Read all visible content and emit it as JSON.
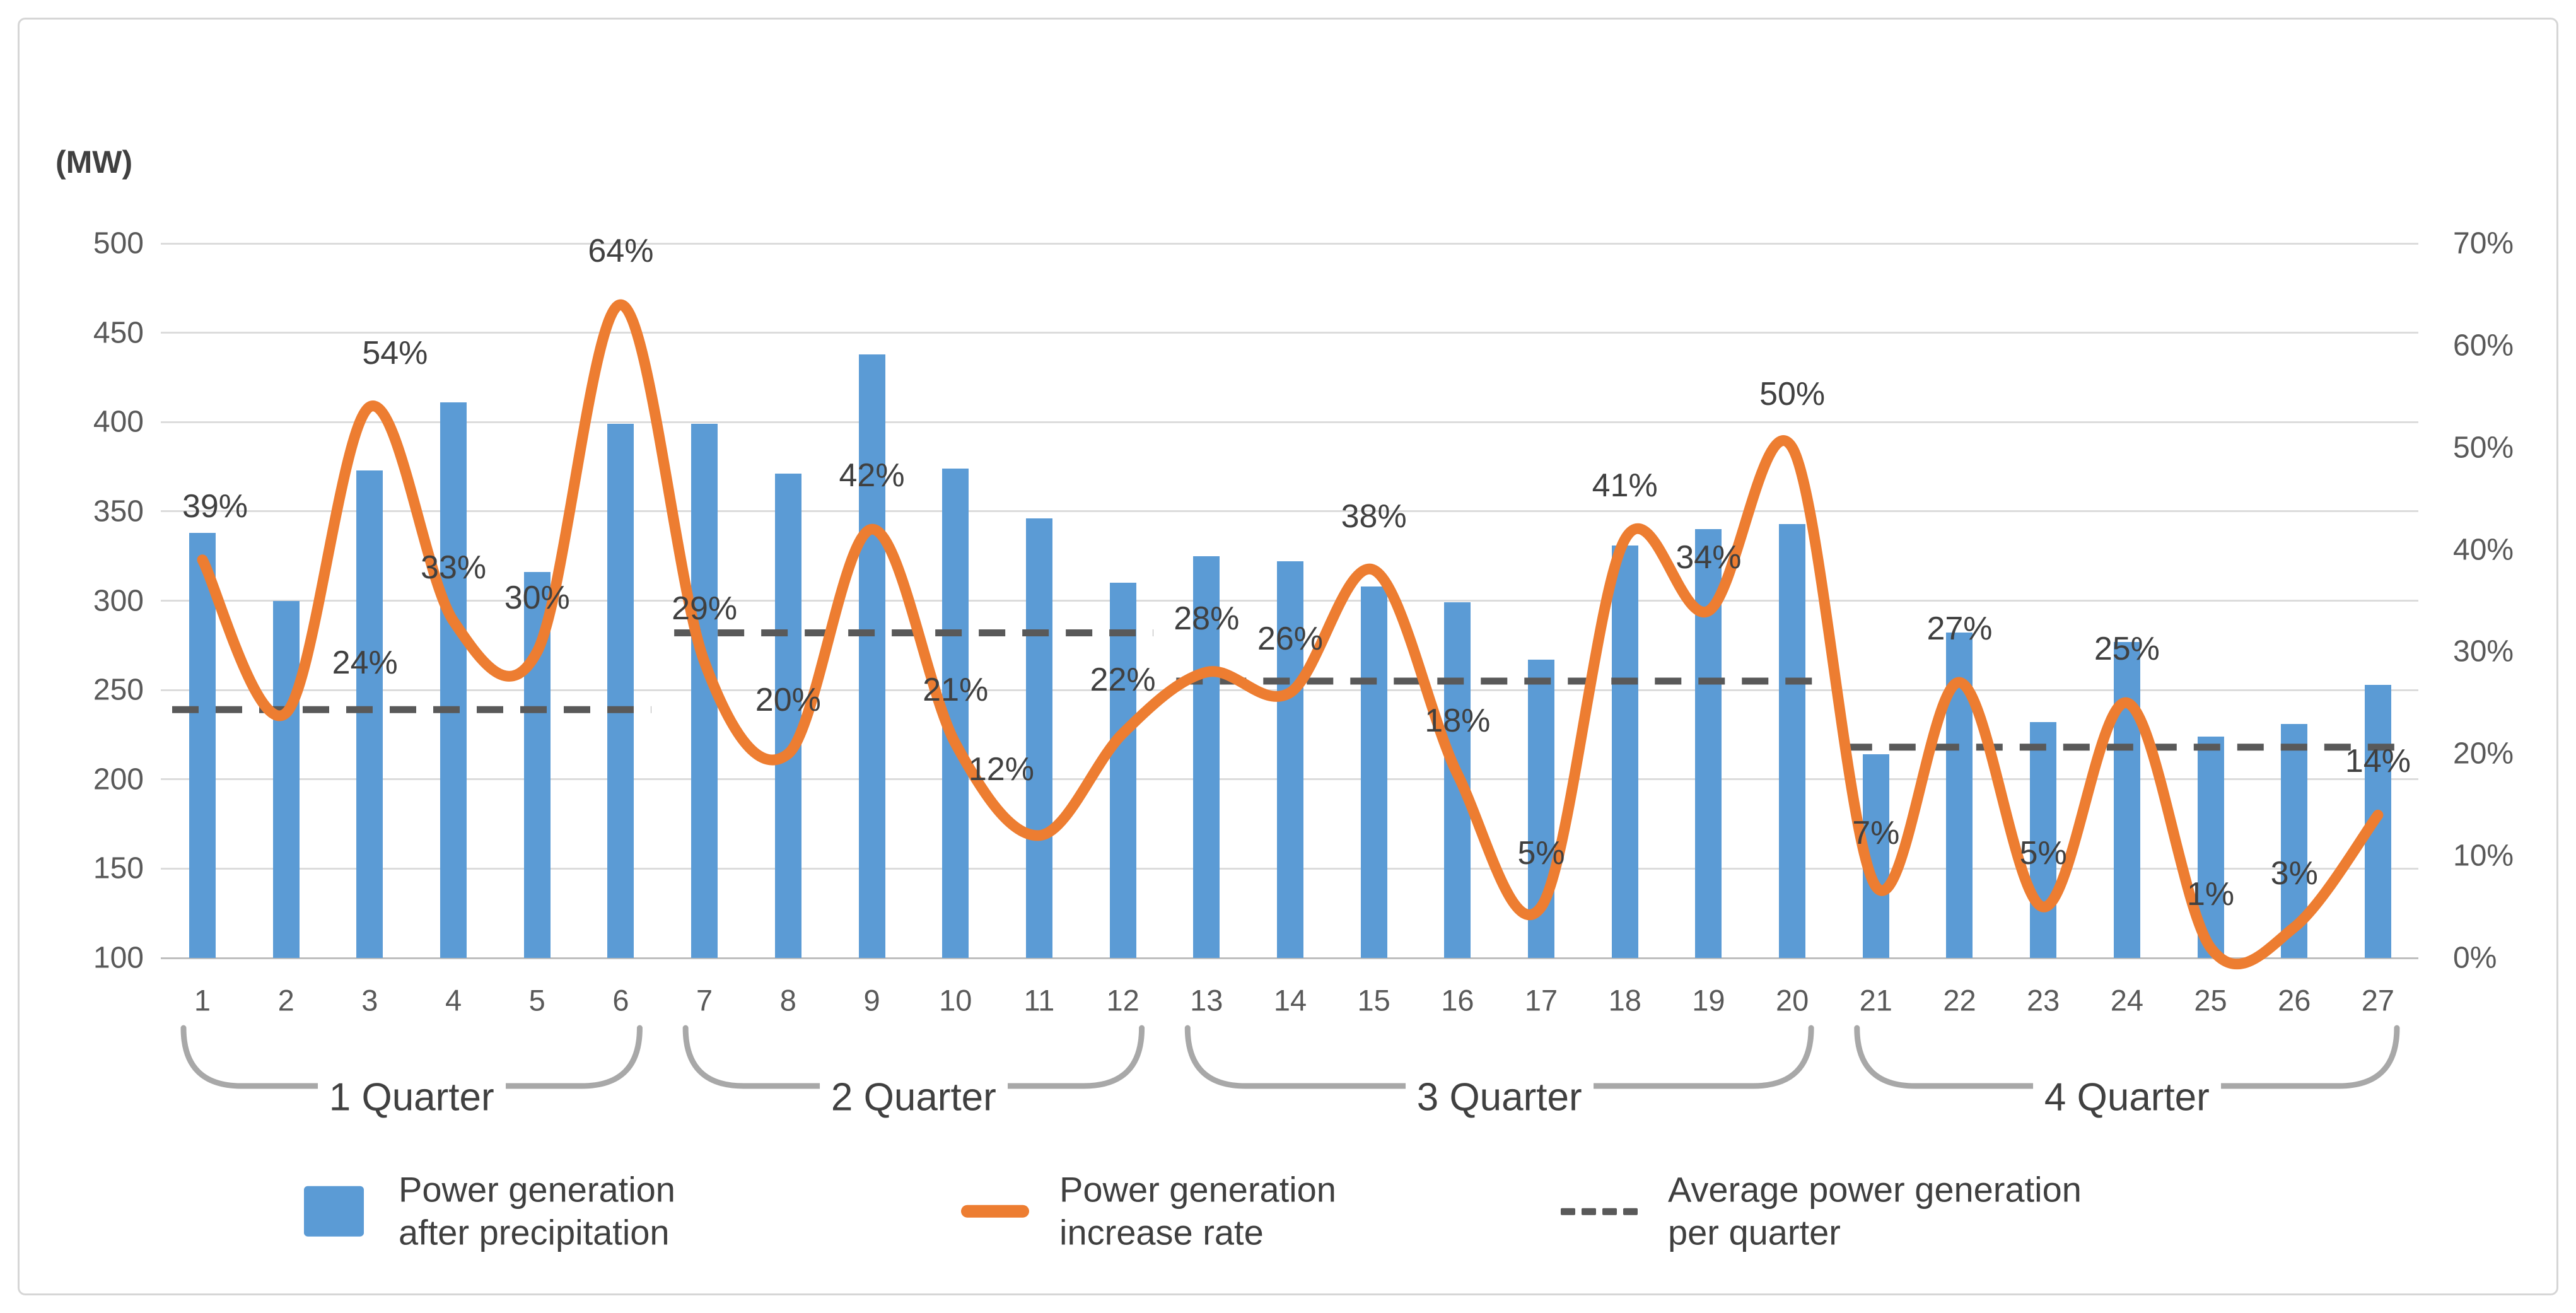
{
  "chart_data": {
    "type": "bar",
    "title": "",
    "categories": [
      "1",
      "2",
      "3",
      "4",
      "5",
      "6",
      "7",
      "8",
      "9",
      "10",
      "11",
      "12",
      "13",
      "14",
      "15",
      "16",
      "17",
      "18",
      "19",
      "20",
      "21",
      "22",
      "23",
      "24",
      "25",
      "26",
      "27"
    ],
    "series": [
      {
        "name": "Power generation after precipitation",
        "type": "bar",
        "axis": "left",
        "unit": "MW",
        "color": "#5B9BD5",
        "values": [
          338,
          300,
          373,
          411,
          316,
          399,
          399,
          371,
          438,
          374,
          346,
          310,
          325,
          322,
          308,
          299,
          267,
          331,
          340,
          343,
          214,
          282,
          232,
          277,
          224,
          231,
          253
        ]
      },
      {
        "name": "Power generation increase rate",
        "type": "line",
        "axis": "right",
        "unit": "%",
        "color": "#ED7D31",
        "values": [
          39,
          24,
          54,
          33,
          30,
          64,
          29,
          20,
          42,
          21,
          12,
          22,
          28,
          26,
          38,
          18,
          5,
          41,
          34,
          50,
          7,
          27,
          5,
          25,
          1,
          3,
          14
        ],
        "point_labels": [
          "39%",
          "24%",
          "54%",
          "33%",
          "30%",
          "64%",
          "29%",
          "20%",
          "42%",
          "21%",
          "12%",
          "22%",
          "28%",
          "26%",
          "38%",
          "18%",
          "5%",
          "41%",
          "34%",
          "50%",
          "7%",
          "27%",
          "5%",
          "25%",
          "1%",
          "3%",
          "14%"
        ]
      },
      {
        "name": "Average power generation per quarter",
        "type": "dashed-average",
        "axis": "left",
        "unit": "MW",
        "color": "#595959",
        "segments": [
          {
            "quarter": "1 Quarter",
            "from": 1,
            "to": 6,
            "value": 239
          },
          {
            "quarter": "2 Quarter",
            "from": 7,
            "to": 12,
            "value": 282
          },
          {
            "quarter": "3 Quarter",
            "from": 13,
            "to": 20,
            "value": 255
          },
          {
            "quarter": "4 Quarter",
            "from": 21,
            "to": 27,
            "value": 218
          }
        ]
      }
    ],
    "left_axis": {
      "label": "(MW)",
      "min": 100,
      "max": 500,
      "step": 50,
      "ticks": [
        "500",
        "450",
        "400",
        "350",
        "300",
        "250",
        "200",
        "150",
        "100"
      ]
    },
    "right_axis": {
      "min": 0,
      "max": 70,
      "step": 10,
      "ticks": [
        "70%",
        "60%",
        "50%",
        "40%",
        "30%",
        "20%",
        "10%",
        "0%"
      ]
    },
    "x_groups": [
      {
        "label": "1 Quarter",
        "from": 1,
        "to": 6
      },
      {
        "label": "2 Quarter",
        "from": 7,
        "to": 12
      },
      {
        "label": "3 Quarter",
        "from": 13,
        "to": 20
      },
      {
        "label": "4 Quarter",
        "from": 21,
        "to": 27
      }
    ],
    "grid": true,
    "legend_position": "bottom"
  },
  "legend": {
    "items": [
      {
        "swatch": "bar-swatch",
        "color": "#5B9BD5",
        "line1": "Power generation",
        "line2": "after precipitation"
      },
      {
        "swatch": "line-swatch",
        "color": "#ED7D31",
        "line1": "Power generation",
        "line2": "increase rate"
      },
      {
        "swatch": "dash-swatch",
        "color": "#595959",
        "line1": "Average power generation",
        "line2": "per quarter"
      }
    ]
  }
}
